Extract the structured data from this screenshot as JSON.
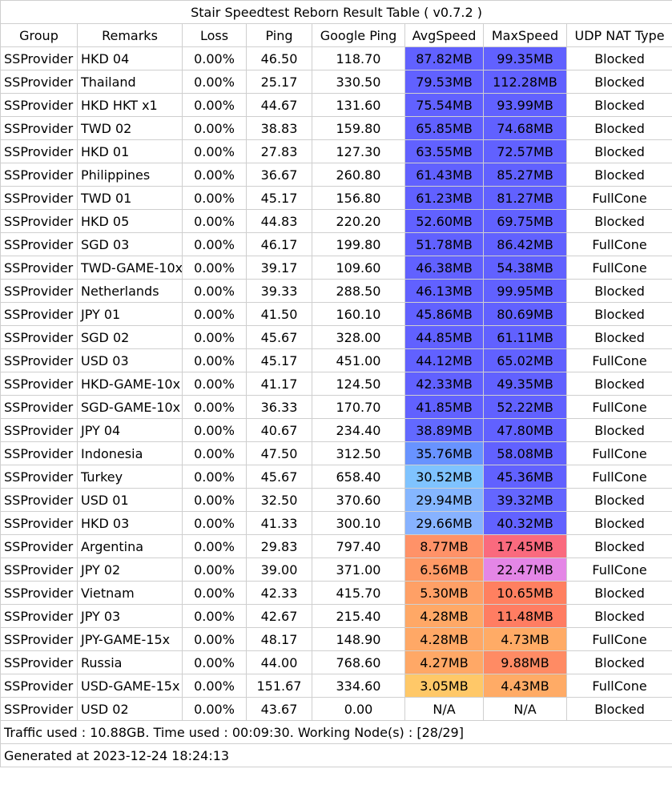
{
  "title": "Stair Speedtest Reborn Result Table ( v0.7.2 )",
  "columns": [
    "Group",
    "Remarks",
    "Loss",
    "Ping",
    "Google Ping",
    "AvgSpeed",
    "MaxSpeed",
    "UDP NAT Type"
  ],
  "rows": [
    {
      "group": "SSProvider",
      "remarks": "HKD 04",
      "loss": "0.00%",
      "ping": "46.50",
      "google_ping": "118.70",
      "avg": "87.82MB",
      "max": "99.35MB",
      "nat": "Blocked",
      "avg_color": "#6161ff",
      "max_color": "#6161ff"
    },
    {
      "group": "SSProvider",
      "remarks": "Thailand",
      "loss": "0.00%",
      "ping": "25.17",
      "google_ping": "330.50",
      "avg": "79.53MB",
      "max": "112.28MB",
      "nat": "Blocked",
      "avg_color": "#6161ff",
      "max_color": "#6161ff"
    },
    {
      "group": "SSProvider",
      "remarks": "HKD HKT x1",
      "loss": "0.00%",
      "ping": "44.67",
      "google_ping": "131.60",
      "avg": "75.54MB",
      "max": "93.99MB",
      "nat": "Blocked",
      "avg_color": "#6161ff",
      "max_color": "#6161ff"
    },
    {
      "group": "SSProvider",
      "remarks": "TWD 02",
      "loss": "0.00%",
      "ping": "38.83",
      "google_ping": "159.80",
      "avg": "65.85MB",
      "max": "74.68MB",
      "nat": "Blocked",
      "avg_color": "#6161ff",
      "max_color": "#6161ff"
    },
    {
      "group": "SSProvider",
      "remarks": "HKD  01",
      "loss": "0.00%",
      "ping": "27.83",
      "google_ping": "127.30",
      "avg": "63.55MB",
      "max": "72.57MB",
      "nat": "Blocked",
      "avg_color": "#6161ff",
      "max_color": "#6161ff"
    },
    {
      "group": "SSProvider",
      "remarks": "Philippines",
      "loss": "0.00%",
      "ping": "36.67",
      "google_ping": "260.80",
      "avg": "61.43MB",
      "max": "85.27MB",
      "nat": "Blocked",
      "avg_color": "#6161ff",
      "max_color": "#6161ff"
    },
    {
      "group": "SSProvider",
      "remarks": "TWD 01",
      "loss": "0.00%",
      "ping": "45.17",
      "google_ping": "156.80",
      "avg": "61.23MB",
      "max": "81.27MB",
      "nat": "FullCone",
      "avg_color": "#6161ff",
      "max_color": "#6161ff"
    },
    {
      "group": "SSProvider",
      "remarks": "HKD 05",
      "loss": "0.00%",
      "ping": "44.83",
      "google_ping": "220.20",
      "avg": "52.60MB",
      "max": "69.75MB",
      "nat": "Blocked",
      "avg_color": "#6161ff",
      "max_color": "#6161ff"
    },
    {
      "group": "SSProvider",
      "remarks": "SGD 03",
      "loss": "0.00%",
      "ping": "46.17",
      "google_ping": "199.80",
      "avg": "51.78MB",
      "max": "86.42MB",
      "nat": "FullCone",
      "avg_color": "#6161ff",
      "max_color": "#6161ff"
    },
    {
      "group": "SSProvider",
      "remarks": "TWD-GAME-10x",
      "loss": "0.00%",
      "ping": "39.17",
      "google_ping": "109.60",
      "avg": "46.38MB",
      "max": "54.38MB",
      "nat": "FullCone",
      "avg_color": "#6161ff",
      "max_color": "#6161ff"
    },
    {
      "group": "SSProvider",
      "remarks": "Netherlands",
      "loss": "0.00%",
      "ping": "39.33",
      "google_ping": "288.50",
      "avg": "46.13MB",
      "max": "99.95MB",
      "nat": "Blocked",
      "avg_color": "#6161ff",
      "max_color": "#6161ff"
    },
    {
      "group": "SSProvider",
      "remarks": "JPY 01",
      "loss": "0.00%",
      "ping": "41.50",
      "google_ping": "160.10",
      "avg": "45.86MB",
      "max": "80.69MB",
      "nat": "Blocked",
      "avg_color": "#6161ff",
      "max_color": "#6161ff"
    },
    {
      "group": "SSProvider",
      "remarks": "SGD 02",
      "loss": "0.00%",
      "ping": "45.67",
      "google_ping": "328.00",
      "avg": "44.85MB",
      "max": "61.11MB",
      "nat": "Blocked",
      "avg_color": "#6161ff",
      "max_color": "#6161ff"
    },
    {
      "group": "SSProvider",
      "remarks": "USD 03",
      "loss": "0.00%",
      "ping": "45.17",
      "google_ping": "451.00",
      "avg": "44.12MB",
      "max": "65.02MB",
      "nat": "FullCone",
      "avg_color": "#6161ff",
      "max_color": "#6161ff"
    },
    {
      "group": "SSProvider",
      "remarks": "HKD-GAME-10x",
      "loss": "0.00%",
      "ping": "41.17",
      "google_ping": "124.50",
      "avg": "42.33MB",
      "max": "49.35MB",
      "nat": "Blocked",
      "avg_color": "#6161ff",
      "max_color": "#6161ff"
    },
    {
      "group": "SSProvider",
      "remarks": "SGD-GAME-10x",
      "loss": "0.00%",
      "ping": "36.33",
      "google_ping": "170.70",
      "avg": "41.85MB",
      "max": "52.22MB",
      "nat": "FullCone",
      "avg_color": "#6161ff",
      "max_color": "#6161ff"
    },
    {
      "group": "SSProvider",
      "remarks": "JPY 04",
      "loss": "0.00%",
      "ping": "40.67",
      "google_ping": "234.40",
      "avg": "38.89MB",
      "max": "47.80MB",
      "nat": "Blocked",
      "avg_color": "#6269ff",
      "max_color": "#6161ff"
    },
    {
      "group": "SSProvider",
      "remarks": "Indonesia",
      "loss": "0.00%",
      "ping": "47.50",
      "google_ping": "312.50",
      "avg": "35.76MB",
      "max": "58.08MB",
      "nat": "FullCone",
      "avg_color": "#6893ff",
      "max_color": "#6161ff"
    },
    {
      "group": "SSProvider",
      "remarks": "Turkey",
      "loss": "0.00%",
      "ping": "45.67",
      "google_ping": "658.40",
      "avg": "30.52MB",
      "max": "45.36MB",
      "nat": "FullCone",
      "avg_color": "#7fc3ff",
      "max_color": "#6161ff"
    },
    {
      "group": "SSProvider",
      "remarks": "USD 01",
      "loss": "0.00%",
      "ping": "32.50",
      "google_ping": "370.60",
      "avg": "29.94MB",
      "max": "39.32MB",
      "nat": "Blocked",
      "avg_color": "#85b6ff",
      "max_color": "#6466ff"
    },
    {
      "group": "SSProvider",
      "remarks": "HKD 03",
      "loss": "0.00%",
      "ping": "41.33",
      "google_ping": "300.10",
      "avg": "29.66MB",
      "max": "40.32MB",
      "nat": "Blocked",
      "avg_color": "#87b2ff",
      "max_color": "#6262ff"
    },
    {
      "group": "SSProvider",
      "remarks": "Argentina",
      "loss": "0.00%",
      "ping": "29.83",
      "google_ping": "797.40",
      "avg": "8.77MB",
      "max": "17.45MB",
      "nat": "Blocked",
      "avg_color": "#ff9268",
      "max_color": "#fa6a7e"
    },
    {
      "group": "SSProvider",
      "remarks": "JPY 02",
      "loss": "0.00%",
      "ping": "39.00",
      "google_ping": "371.00",
      "avg": "6.56MB",
      "max": "22.47MB",
      "nat": "FullCone",
      "avg_color": "#ff9a66",
      "max_color": "#e486e6"
    },
    {
      "group": "SSProvider",
      "remarks": "Vietnam",
      "loss": "0.00%",
      "ping": "42.33",
      "google_ping": "415.70",
      "avg": "5.30MB",
      "max": "10.65MB",
      "nat": "Blocked",
      "avg_color": "#ffa066",
      "max_color": "#ff8060"
    },
    {
      "group": "SSProvider",
      "remarks": "JPY 03",
      "loss": "0.00%",
      "ping": "42.67",
      "google_ping": "215.40",
      "avg": "4.28MB",
      "max": "11.48MB",
      "nat": "Blocked",
      "avg_color": "#ffa866",
      "max_color": "#ff7d62"
    },
    {
      "group": "SSProvider",
      "remarks": "JPY-GAME-15x",
      "loss": "0.00%",
      "ping": "48.17",
      "google_ping": "148.90",
      "avg": "4.28MB",
      "max": "4.73MB",
      "nat": "FullCone",
      "avg_color": "#ffa866",
      "max_color": "#ffab66"
    },
    {
      "group": "SSProvider",
      "remarks": "Russia",
      "loss": "0.00%",
      "ping": "44.00",
      "google_ping": "768.60",
      "avg": "4.27MB",
      "max": "9.88MB",
      "nat": "Blocked",
      "avg_color": "#ffa866",
      "max_color": "#ff8b64"
    },
    {
      "group": "SSProvider",
      "remarks": "USD-GAME-15x",
      "loss": "0.00%",
      "ping": "151.67",
      "google_ping": "334.60",
      "avg": "3.05MB",
      "max": "4.43MB",
      "nat": "FullCone",
      "avg_color": "#ffc868",
      "max_color": "#ffab66"
    },
    {
      "group": "SSProvider",
      "remarks": "USD 02",
      "loss": "0.00%",
      "ping": "43.67",
      "google_ping": "0.00",
      "avg": "N/A",
      "max": "N/A",
      "nat": "Blocked",
      "avg_color": "#ffffff",
      "max_color": "#ffffff"
    }
  ],
  "footer": {
    "traffic": "Traffic used : 10.88GB. Time used : 00:09:30. Working Node(s) : [28/29]",
    "generated": "Generated at 2023-12-24 18:24:13"
  }
}
